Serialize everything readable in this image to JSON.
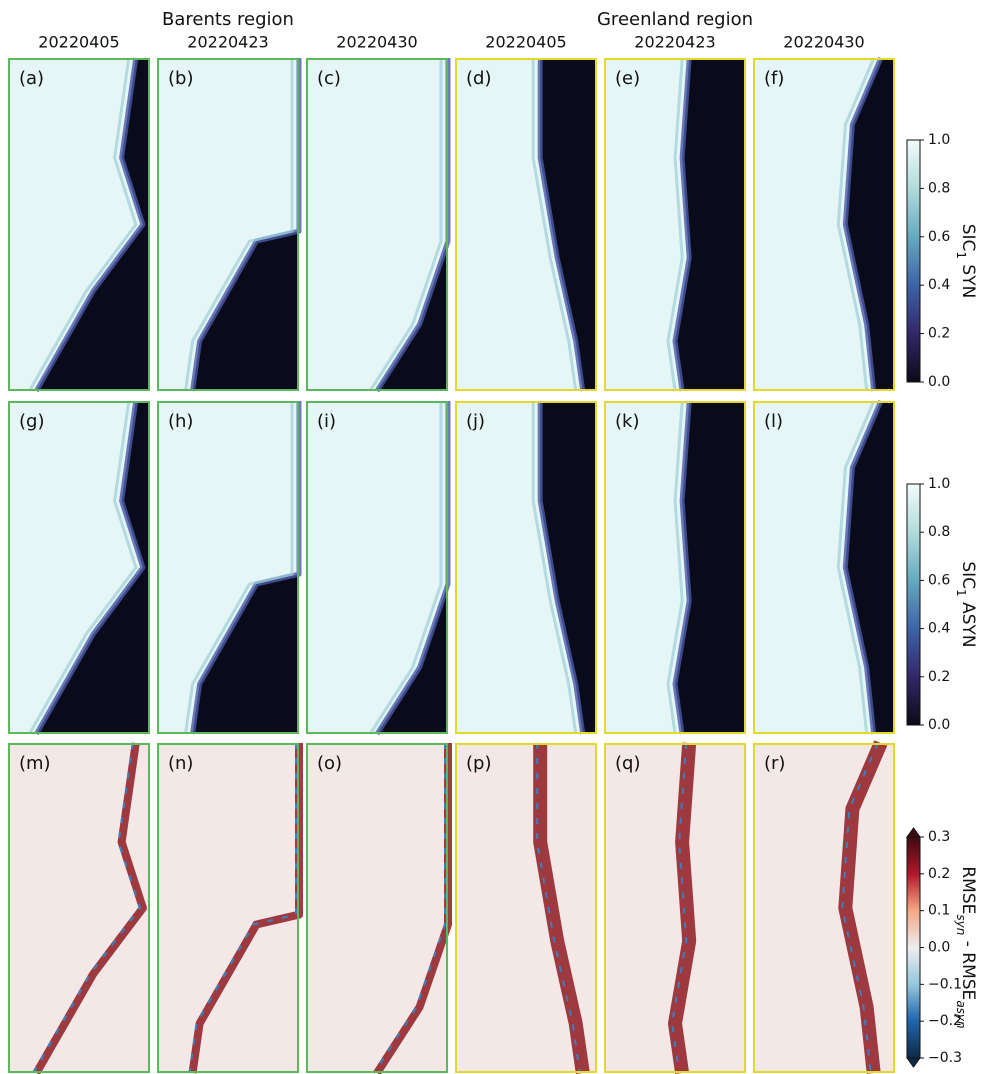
{
  "figure": {
    "regions": [
      {
        "title": "Barents region",
        "dates": [
          "20220405",
          "20220423",
          "20220430"
        ]
      },
      {
        "title": "Greenland region",
        "dates": [
          "20220405",
          "20220423",
          "20220430"
        ]
      }
    ],
    "panel_labels": [
      "(a)",
      "(b)",
      "(c)",
      "(d)",
      "(e)",
      "(f)",
      "(g)",
      "(h)",
      "(i)",
      "(j)",
      "(k)",
      "(l)",
      "(m)",
      "(n)",
      "(o)",
      "(p)",
      "(q)",
      "(r)"
    ],
    "colorbars": [
      {
        "label": [
          "SIC",
          "1",
          " SYN"
        ],
        "lim": [
          0,
          1
        ],
        "ticks": [
          {
            "value": 0,
            "label": "0.0"
          },
          0.2,
          0.4,
          0.6,
          0.8,
          {
            "value": 1,
            "label": "1.0"
          }
        ]
      },
      {
        "label": [
          "SIC",
          "1",
          " ASYN"
        ],
        "lim": [
          0,
          1
        ],
        "ticks": [
          {
            "value": 0,
            "label": "0.0"
          },
          0.2,
          0.4,
          0.6,
          0.8,
          {
            "value": 1,
            "label": "1.0"
          }
        ]
      },
      {
        "label": [
          "RMSE",
          "syn",
          " - RMSE",
          "asyn"
        ],
        "lim": [
          -0.3,
          0.3
        ],
        "ticks": [
          {
            "value": -0.3,
            "label": "−0.3"
          },
          {
            "value": -0.2,
            "label": "−0.2"
          },
          {
            "value": -0.1,
            "label": "−0.1"
          },
          {
            "value": 0,
            "label": "0.0"
          },
          0.1,
          0.2,
          0.3
        ]
      }
    ]
  }
}
